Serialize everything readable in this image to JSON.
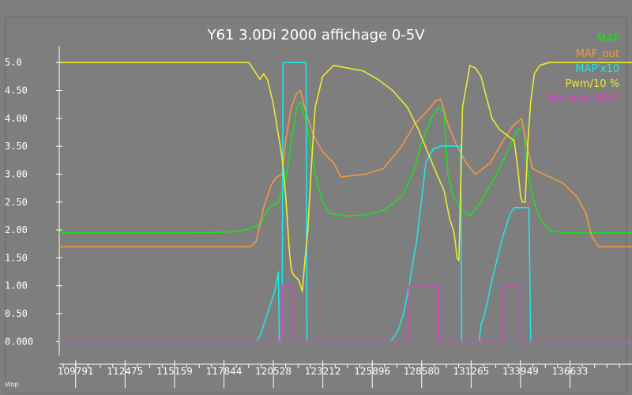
{
  "status": {
    "label": "stop"
  },
  "chart_data": {
    "type": "line",
    "title": "Y61 3.0Di 2000 affichage 0-5V",
    "xlabel": "",
    "ylabel": "",
    "xlim": [
      108900,
      140000
    ],
    "ylim": [
      -0.25,
      5.3
    ],
    "grid": false,
    "legend_position": "top-right",
    "ytick_labels": [
      "0.000",
      "0.50",
      "1.00",
      "1.50",
      "2.00",
      "2.50",
      "3.00",
      "3.50",
      "4.00",
      "4.50",
      "5.0"
    ],
    "ytick_values": [
      0,
      0.5,
      1,
      1.5,
      2,
      2.5,
      3,
      3.5,
      4,
      4.5,
      5
    ],
    "xtick_labels": [
      "109791",
      "112475",
      "115159",
      "117844",
      "120528",
      "123212",
      "125896",
      "128580",
      "131265",
      "133949",
      "136633"
    ],
    "xtick_values": [
      109791,
      112475,
      115159,
      117844,
      120528,
      123212,
      125896,
      128580,
      131265,
      133949,
      136633
    ],
    "colors": {
      "background": "#7e7e7e",
      "axis": "#ffffff"
    },
    "series": [
      {
        "name": "MAP",
        "color": "#22dd22",
        "x": [
          108900,
          112000,
          116000,
          118000,
          119000,
          119800,
          120300,
          120800,
          121200,
          121500,
          121800,
          122000,
          122400,
          122800,
          123200,
          123600,
          124500,
          125500,
          126500,
          127500,
          128100,
          128600,
          129100,
          129500,
          129800,
          130000,
          130300,
          130800,
          131200,
          131800,
          132800,
          133500,
          133800,
          134100,
          134300,
          134600,
          135000,
          135500,
          136200,
          137500,
          138500,
          140000
        ],
        "values": [
          1.95,
          1.95,
          1.95,
          1.96,
          2.0,
          2.1,
          2.4,
          2.5,
          2.9,
          3.6,
          4.2,
          4.3,
          3.8,
          3.0,
          2.5,
          2.3,
          2.25,
          2.27,
          2.35,
          2.6,
          3.0,
          3.6,
          4.0,
          4.2,
          4.1,
          3.0,
          2.6,
          2.35,
          2.25,
          2.5,
          3.1,
          3.6,
          3.8,
          3.85,
          3.1,
          2.6,
          2.2,
          2.0,
          1.95,
          1.95,
          1.95,
          1.95
        ]
      },
      {
        "name": "MAF_out",
        "color": "#f09a40",
        "x": [
          108900,
          116000,
          119300,
          119600,
          120000,
          120400,
          120700,
          121000,
          121200,
          121500,
          121800,
          122000,
          122300,
          122700,
          123200,
          123800,
          124200,
          125500,
          126500,
          127500,
          128200,
          128800,
          129300,
          129600,
          130000,
          130500,
          131000,
          131500,
          132300,
          133000,
          133500,
          134000,
          134300,
          134600,
          135200,
          136200,
          137000,
          137500,
          137800,
          138200,
          140000
        ],
        "values": [
          1.7,
          1.7,
          1.7,
          1.8,
          2.4,
          2.8,
          2.95,
          3.0,
          3.6,
          4.2,
          4.45,
          4.5,
          4.1,
          3.7,
          3.4,
          3.2,
          2.95,
          3.0,
          3.1,
          3.5,
          3.9,
          4.1,
          4.3,
          4.35,
          3.9,
          3.5,
          3.2,
          3.0,
          3.2,
          3.6,
          3.85,
          4.0,
          3.5,
          3.1,
          3.0,
          2.85,
          2.6,
          2.3,
          1.9,
          1.7,
          1.7
        ]
      },
      {
        "name": "MAP'x10",
        "color": "#20e5e5",
        "x": [
          108900,
          119600,
          119800,
          120000,
          120300,
          120600,
          120800,
          120850,
          121000,
          121050,
          122300,
          122350,
          122500,
          122550,
          126900,
          127100,
          127300,
          127600,
          127900,
          128300,
          128600,
          128800,
          129200,
          129600,
          129900,
          130000,
          130700,
          130750,
          131700,
          131800,
          132000,
          132200,
          132400,
          132700,
          133000,
          133200,
          133400,
          133600,
          133800,
          134000,
          134400,
          134500,
          140000
        ],
        "values": [
          0,
          0,
          0.1,
          0.3,
          0.6,
          0.9,
          1.25,
          0,
          0,
          5.0,
          5.0,
          0,
          0,
          0,
          0,
          0.1,
          0.2,
          0.5,
          1.0,
          1.8,
          2.6,
          3.2,
          3.45,
          3.5,
          3.5,
          3.5,
          3.5,
          0,
          0,
          0.3,
          0.5,
          0.8,
          1.1,
          1.5,
          1.9,
          2.1,
          2.3,
          2.4,
          2.4,
          2.4,
          2.4,
          0,
          0
        ]
      },
      {
        "name": "Pwm/10 %",
        "color": "#ecec30",
        "x": [
          108900,
          119200,
          119600,
          119800,
          120000,
          120200,
          120500,
          120700,
          121000,
          121200,
          121400,
          121500,
          121600,
          121900,
          122100,
          122200,
          122400,
          122500,
          122600,
          122800,
          123200,
          123800,
          124600,
          125400,
          126200,
          127000,
          127800,
          128400,
          128900,
          129400,
          129800,
          130100,
          130300,
          130400,
          130500,
          130600,
          130800,
          131200,
          131500,
          131800,
          132000,
          132400,
          132800,
          133200,
          133600,
          133800,
          133950,
          134050,
          134200,
          134350,
          134500,
          134700,
          135000,
          135500,
          140000
        ],
        "values": [
          5.0,
          5.0,
          4.8,
          4.7,
          4.8,
          4.7,
          4.3,
          3.9,
          3.3,
          2.6,
          1.6,
          1.3,
          1.2,
          1.1,
          0.9,
          1.3,
          2.0,
          2.6,
          3.2,
          4.2,
          4.75,
          4.95,
          4.9,
          4.85,
          4.7,
          4.5,
          4.2,
          3.8,
          3.4,
          3.0,
          2.7,
          2.2,
          2.0,
          1.8,
          1.5,
          1.45,
          4.2,
          4.95,
          4.9,
          4.75,
          4.5,
          4.0,
          3.8,
          3.7,
          3.6,
          3.1,
          2.6,
          2.5,
          2.5,
          3.6,
          4.3,
          4.8,
          4.95,
          5.0,
          5.0
        ]
      },
      {
        "name": "blocage_MAP'",
        "color": "#e040c8",
        "x": [
          108900,
          121000,
          121000,
          121600,
          121600,
          127900,
          127900,
          129500,
          129500,
          133000,
          133000,
          133900,
          133900,
          140000
        ],
        "values": [
          0,
          0,
          1,
          1,
          0,
          0,
          1,
          1,
          0,
          0,
          1,
          1,
          0,
          0
        ]
      }
    ]
  }
}
